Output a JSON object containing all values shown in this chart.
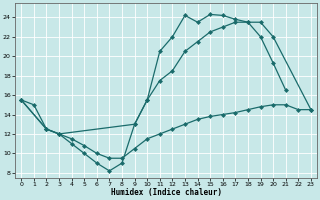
{
  "xlabel": "Humidex (Indice chaleur)",
  "background_color": "#c8e8e8",
  "grid_color": "#b0d8d8",
  "line_color": "#1a6b6b",
  "xlim": [
    -0.5,
    23.5
  ],
  "ylim": [
    7.5,
    25.5
  ],
  "yticks": [
    8,
    10,
    12,
    14,
    16,
    18,
    20,
    22,
    24
  ],
  "xticks": [
    0,
    1,
    2,
    3,
    4,
    5,
    6,
    7,
    8,
    9,
    10,
    11,
    12,
    13,
    14,
    15,
    16,
    17,
    18,
    19,
    20,
    21,
    22,
    23
  ],
  "series": [
    {
      "x": [
        0,
        2,
        3,
        4,
        5,
        6,
        7,
        8,
        9,
        10,
        11,
        12,
        13,
        14,
        15,
        16,
        17,
        18,
        19,
        20,
        21
      ],
      "y": [
        15.5,
        12.5,
        12.0,
        11.0,
        10.0,
        9.0,
        8.2,
        9.0,
        13.0,
        15.5,
        20.5,
        22.0,
        24.2,
        23.5,
        24.3,
        24.2,
        23.8,
        23.5,
        22.0,
        19.3,
        16.5
      ],
      "marker": "D",
      "markersize": 2.0,
      "linewidth": 0.9
    },
    {
      "x": [
        0,
        2,
        3,
        9,
        10,
        11,
        12,
        13,
        14,
        15,
        16,
        17,
        18,
        19,
        20,
        23
      ],
      "y": [
        15.5,
        12.5,
        12.0,
        13.0,
        15.5,
        17.5,
        18.5,
        20.5,
        21.5,
        22.5,
        23.0,
        23.5,
        23.5,
        23.5,
        22.0,
        14.5
      ],
      "marker": "D",
      "markersize": 2.0,
      "linewidth": 0.9
    },
    {
      "x": [
        0,
        1,
        2,
        3,
        4,
        5,
        6,
        7,
        8,
        9,
        10,
        11,
        12,
        13,
        14,
        15,
        16,
        17,
        18,
        19,
        20,
        21,
        22,
        23
      ],
      "y": [
        15.5,
        15.0,
        12.5,
        12.0,
        11.5,
        10.8,
        10.0,
        9.5,
        9.5,
        10.5,
        11.5,
        12.0,
        12.5,
        13.0,
        13.5,
        13.8,
        14.0,
        14.2,
        14.5,
        14.8,
        15.0,
        15.0,
        14.5,
        14.5
      ],
      "marker": "D",
      "markersize": 2.0,
      "linewidth": 0.9
    }
  ]
}
